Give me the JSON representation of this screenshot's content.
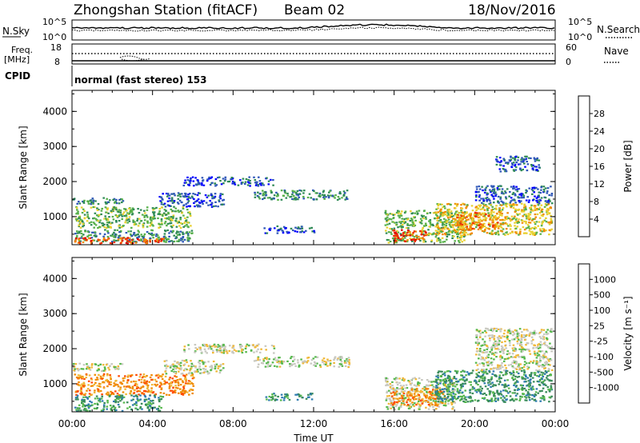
{
  "header": {
    "station": "Zhongshan Station (fitACF)",
    "beam": "Beam 02",
    "date": "18/Nov/2016"
  },
  "summary": {
    "nsky_label": "N.Sky",
    "nsky_ticks": [
      "10^5",
      "10^0"
    ],
    "nsearch_label": "N.Search",
    "nsearch_ticks": [
      "10^5",
      "10^0"
    ],
    "freq_label": "Freq.",
    "freq_unit": "[MHz]",
    "freq_ticks": [
      "18",
      "8"
    ],
    "nave_label": "Nave",
    "nave_ticks": [
      "60",
      "0"
    ],
    "cpid_label": "CPID",
    "cpid_text": "normal (fast stereo) 153"
  },
  "chart_data": [
    {
      "type": "heatmap",
      "name": "power",
      "ylabel": "Slant Range [km]",
      "xlabel": "",
      "x_ticks": [
        "00:00",
        "04:00",
        "08:00",
        "12:00",
        "16:00",
        "20:00",
        "00:00"
      ],
      "y_ticks": [
        "1000",
        "2000",
        "3000",
        "4000"
      ],
      "xlim": [
        0,
        24
      ],
      "ylim": [
        200,
        4600
      ],
      "colorbar": {
        "label": "Power [dB]",
        "ticks": [
          "4",
          "8",
          "12",
          "16",
          "20",
          "24",
          "28"
        ],
        "colors": [
          "#0000ff",
          "#2f57b8",
          "#2f8a55",
          "#57b04a",
          "#e8d030",
          "#f08a00",
          "#ee3000",
          "#e00000"
        ]
      },
      "regions": [
        {
          "x0": 0.0,
          "x1": 2.5,
          "y0": 1380,
          "y1": 1560,
          "v": 2
        },
        {
          "x0": 0.1,
          "x1": 5.9,
          "y0": 700,
          "y1": 1300,
          "v": 3
        },
        {
          "x0": 0.1,
          "x1": 6.0,
          "y0": 300,
          "y1": 650,
          "v": 2
        },
        {
          "x0": 0.1,
          "x1": 4.5,
          "y0": 250,
          "y1": 420,
          "v": 6
        },
        {
          "x0": 4.3,
          "x1": 7.5,
          "y0": 1300,
          "y1": 1700,
          "v": 1
        },
        {
          "x0": 5.5,
          "x1": 10.0,
          "y0": 1900,
          "y1": 2150,
          "v": 1
        },
        {
          "x0": 9.0,
          "x1": 13.8,
          "y0": 1500,
          "y1": 1780,
          "v": 2
        },
        {
          "x0": 9.5,
          "x1": 12.0,
          "y0": 550,
          "y1": 750,
          "v": 1
        },
        {
          "x0": 15.5,
          "x1": 19.5,
          "y0": 280,
          "y1": 1200,
          "v": 3
        },
        {
          "x0": 15.9,
          "x1": 17.6,
          "y0": 280,
          "y1": 650,
          "v": 6
        },
        {
          "x0": 18.0,
          "x1": 23.8,
          "y0": 500,
          "y1": 1400,
          "v": 4
        },
        {
          "x0": 19.0,
          "x1": 21.5,
          "y0": 650,
          "y1": 1150,
          "v": 5
        },
        {
          "x0": 20.0,
          "x1": 23.8,
          "y0": 1400,
          "y1": 1900,
          "v": 1
        },
        {
          "x0": 21.0,
          "x1": 23.3,
          "y0": 2300,
          "y1": 2750,
          "v": 1
        }
      ]
    },
    {
      "type": "heatmap",
      "name": "velocity",
      "ylabel": "Slant Range [km]",
      "xlabel": "Time UT",
      "x_ticks": [
        "00:00",
        "04:00",
        "08:00",
        "12:00",
        "16:00",
        "20:00",
        "00:00"
      ],
      "y_ticks": [
        "1000",
        "2000",
        "3000",
        "4000"
      ],
      "xlim": [
        0,
        24
      ],
      "ylim": [
        200,
        4600
      ],
      "colorbar": {
        "label": "Velocity [m s⁻¹]",
        "ticks": [
          "1000",
          "500",
          "100",
          "25",
          "-25",
          "-100",
          "-500",
          "-1000"
        ],
        "colors": [
          "#2c4eb0",
          "#2e7bb0",
          "#3a8c5a",
          "#56b84c",
          "#c8c8c0",
          "#f0b838",
          "#f08a00",
          "#ff4a00",
          "#e00000"
        ]
      },
      "regions": [
        {
          "x0": 0.0,
          "x1": 2.5,
          "y0": 1380,
          "y1": 1600,
          "v": 4
        },
        {
          "x0": 0.1,
          "x1": 6.0,
          "y0": 700,
          "y1": 1300,
          "v": 6
        },
        {
          "x0": 0.1,
          "x1": 4.5,
          "y0": 250,
          "y1": 700,
          "v": 2
        },
        {
          "x0": 4.5,
          "x1": 7.5,
          "y0": 1300,
          "y1": 1700,
          "v": 4
        },
        {
          "x0": 5.5,
          "x1": 10.0,
          "y0": 1900,
          "y1": 2150,
          "v": 4
        },
        {
          "x0": 9.0,
          "x1": 13.8,
          "y0": 1500,
          "y1": 1800,
          "v": 4
        },
        {
          "x0": 9.5,
          "x1": 12.0,
          "y0": 550,
          "y1": 750,
          "v": 2
        },
        {
          "x0": 15.5,
          "x1": 19.0,
          "y0": 280,
          "y1": 1200,
          "v": 4
        },
        {
          "x0": 15.8,
          "x1": 18.5,
          "y0": 400,
          "y1": 900,
          "v": 6
        },
        {
          "x0": 18.0,
          "x1": 23.8,
          "y0": 500,
          "y1": 1400,
          "v": 2
        },
        {
          "x0": 20.0,
          "x1": 23.8,
          "y0": 1400,
          "y1": 2600,
          "v": 4
        }
      ]
    }
  ]
}
